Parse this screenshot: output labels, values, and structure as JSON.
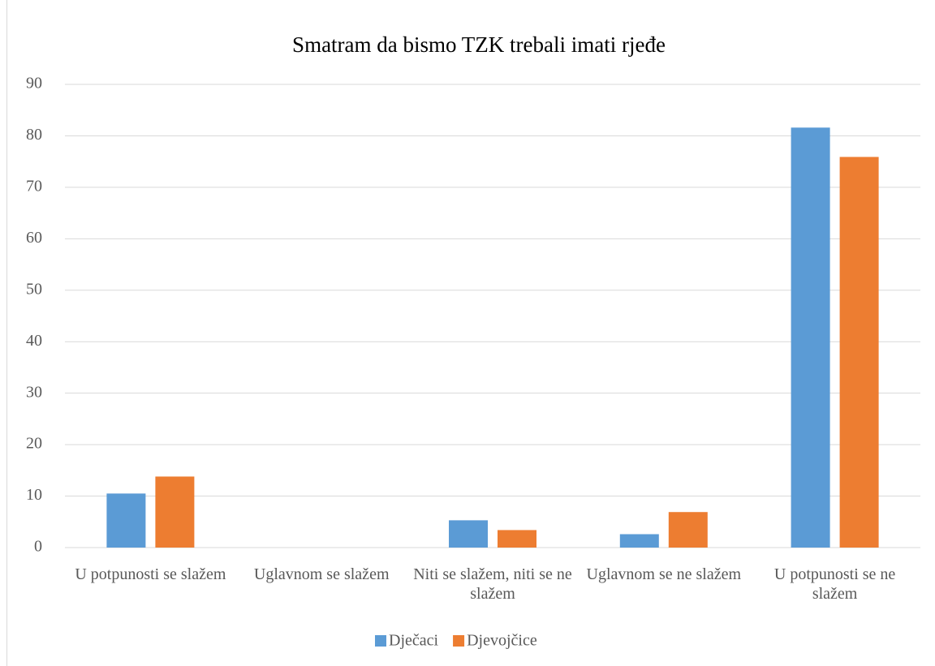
{
  "chart_data": {
    "type": "bar",
    "title": "Smatram da bismo TZK trebali imati rjeđe",
    "categories": [
      "U potpunosti se slažem",
      "Uglavnom se slažem",
      "Niti se slažem, niti se ne slažem",
      "Uglavnom se ne slažem",
      "U potpunosti se ne slažem"
    ],
    "series": [
      {
        "name": "Dječaci",
        "color": "#5b9bd5",
        "values": [
          10.5,
          0,
          5.3,
          2.6,
          81.6
        ]
      },
      {
        "name": "Djevojčice",
        "color": "#ed7d31",
        "values": [
          13.8,
          0,
          3.4,
          6.9,
          75.9
        ]
      }
    ],
    "ylim": [
      0,
      90
    ],
    "yticks": [
      0,
      10,
      20,
      30,
      40,
      50,
      60,
      70,
      80,
      90
    ],
    "grid": true,
    "legend": "bottom"
  }
}
